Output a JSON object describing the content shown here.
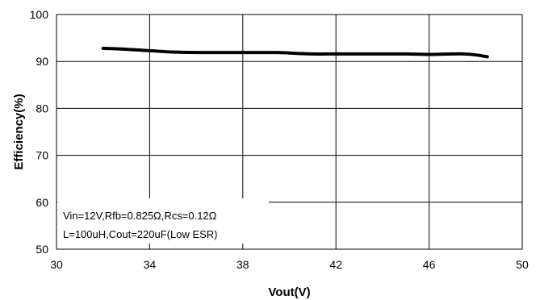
{
  "chart_data": {
    "type": "line",
    "title": "",
    "xlabel": "Vout(V)",
    "ylabel": "Efficiency(%)",
    "xlim": [
      30,
      50
    ],
    "ylim": [
      50,
      100
    ],
    "xticks": [
      30,
      34,
      38,
      42,
      46,
      50
    ],
    "yticks": [
      50,
      60,
      70,
      80,
      90,
      100
    ],
    "grid": true,
    "series": [
      {
        "x": [
          32,
          33,
          34,
          35,
          36,
          37,
          38,
          39,
          39.5,
          40,
          41,
          42,
          43,
          44,
          45,
          46,
          47,
          47.5,
          48,
          48.5
        ],
        "y": [
          92.8,
          92.6,
          92.3,
          92.0,
          91.9,
          91.9,
          91.9,
          91.9,
          91.9,
          91.8,
          91.6,
          91.6,
          91.6,
          91.6,
          91.6,
          91.5,
          91.6,
          91.6,
          91.4,
          91.0
        ],
        "color": "#000000"
      }
    ],
    "annotation": {
      "line1": "Vin=12V,Rfb=0.825Ω,Rcs=0.12Ω",
      "line2": "L=100uH,Cout=220uF(Low ESR)"
    }
  }
}
